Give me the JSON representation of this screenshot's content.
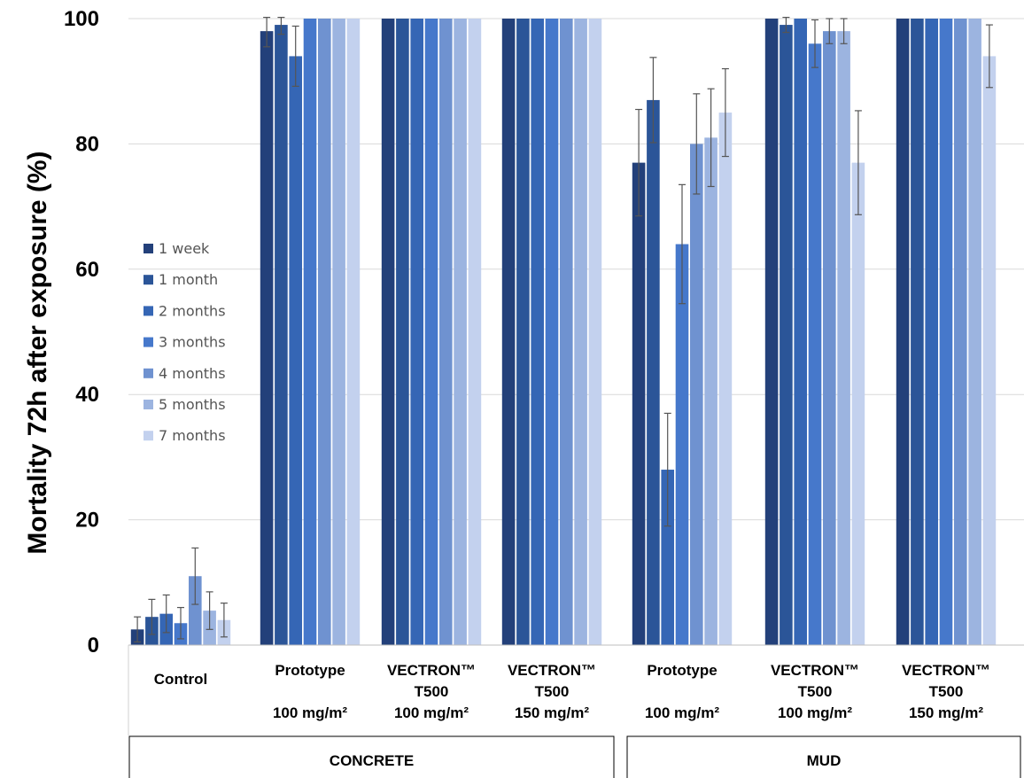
{
  "chart_data": {
    "type": "bar",
    "ylabel": "Mortality 72h after exposure (%)",
    "ylim": [
      0,
      100
    ],
    "yticks": [
      "0",
      "20",
      "40",
      "60",
      "80",
      "100"
    ],
    "grid": true,
    "legend_position": "left",
    "categories": [
      [
        "Control"
      ],
      [
        "Prototype",
        "",
        "100 mg/m²"
      ],
      [
        "VECTRON™",
        "T500",
        "100 mg/m²"
      ],
      [
        "VECTRON™",
        "T500",
        "150 mg/m²"
      ],
      [
        "Prototype",
        "",
        "100 mg/m²"
      ],
      [
        "VECTRON™",
        "T500",
        "100 mg/m²"
      ],
      [
        "VECTRON™",
        "T500",
        "150 mg/m²"
      ]
    ],
    "groups": [
      {
        "label": "CONCRETE",
        "span": [
          0,
          3
        ]
      },
      {
        "label": "MUD",
        "span": [
          4,
          6
        ]
      }
    ],
    "series": [
      {
        "name": "1 week",
        "color": "#23407a",
        "values": [
          2.5,
          98,
          100,
          100,
          77,
          100,
          100
        ],
        "errors": [
          2.0,
          2.5,
          0,
          0,
          8.5,
          0,
          0
        ]
      },
      {
        "name": "1 month",
        "color": "#2b5598",
        "values": [
          4.5,
          99,
          100,
          100,
          87,
          99,
          100
        ],
        "errors": [
          2.8,
          1.5,
          0,
          0,
          6.8,
          1.2,
          0
        ]
      },
      {
        "name": "2 months",
        "color": "#3566b5",
        "values": [
          5,
          94,
          100,
          100,
          28,
          100,
          100
        ],
        "errors": [
          3.0,
          4.8,
          0,
          0,
          9.0,
          0,
          0
        ]
      },
      {
        "name": "3 months",
        "color": "#4678cb",
        "values": [
          3.5,
          100,
          100,
          100,
          64,
          96,
          100
        ],
        "errors": [
          2.5,
          0,
          0,
          0,
          9.5,
          3.8,
          0
        ]
      },
      {
        "name": "4 months",
        "color": "#6f92d0",
        "values": [
          11,
          100,
          100,
          100,
          80,
          98,
          100
        ],
        "errors": [
          4.5,
          0,
          0,
          0,
          8.0,
          2.0,
          0
        ]
      },
      {
        "name": "5 months",
        "color": "#9cb4e0",
        "values": [
          5.5,
          100,
          100,
          100,
          81,
          98,
          100
        ],
        "errors": [
          3.0,
          0,
          0,
          0,
          7.8,
          2.0,
          0
        ]
      },
      {
        "name": "7 months",
        "color": "#c3d1ee",
        "values": [
          4,
          100,
          100,
          100,
          85,
          77,
          94
        ],
        "errors": [
          2.7,
          0,
          0,
          0,
          7.0,
          8.3,
          5.0
        ]
      }
    ]
  }
}
